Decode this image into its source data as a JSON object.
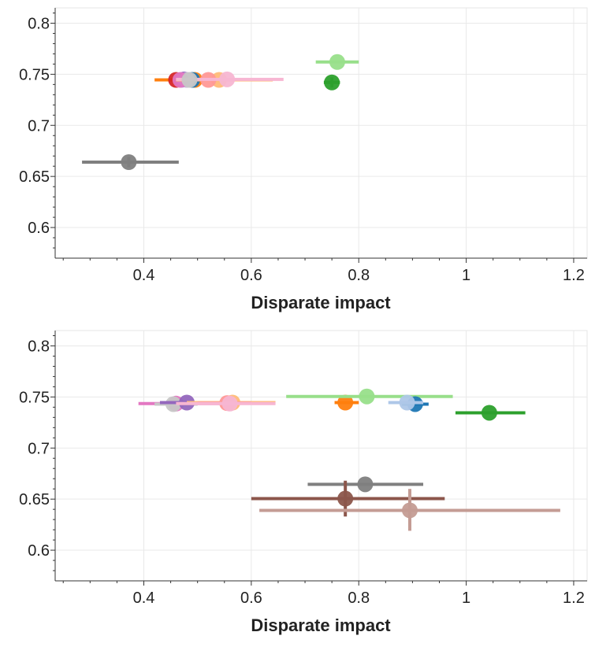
{
  "chart_data": [
    {
      "type": "scatter",
      "xlabel": "Disparate impact",
      "ylabel": "",
      "xlim": [
        0.235,
        1.225
      ],
      "ylim": [
        0.57,
        0.815
      ],
      "x_ticks": [
        0.4,
        0.6,
        0.8,
        1,
        1.2
      ],
      "x_tick_labels": [
        "0.4",
        "0.6",
        "0.8",
        "1",
        "1.2"
      ],
      "y_ticks": [
        0.6,
        0.65,
        0.7,
        0.75,
        0.8
      ],
      "y_tick_labels": [
        "0.6",
        "0.65",
        "0.7",
        "0.75",
        "0.8"
      ],
      "grid": true,
      "points": [
        {
          "x": 0.495,
          "y": 0.7445,
          "xerr": [
            0.42,
            0.56
          ],
          "yerr": null,
          "color": "#ff7f0e"
        },
        {
          "x": 0.49,
          "y": 0.7445,
          "xerr": null,
          "yerr": null,
          "color": "#1f77b4"
        },
        {
          "x": 0.47,
          "y": 0.7445,
          "xerr": null,
          "yerr": null,
          "color": "#aec7e8"
        },
        {
          "x": 0.46,
          "y": 0.7445,
          "xerr": null,
          "yerr": null,
          "color": "#d62728"
        },
        {
          "x": 0.475,
          "y": 0.745,
          "xerr": null,
          "yerr": null,
          "color": "#9467bd"
        },
        {
          "x": 0.48,
          "y": 0.7445,
          "xerr": null,
          "yerr": null,
          "color": "#c5b0d5"
        },
        {
          "x": 0.468,
          "y": 0.7445,
          "xerr": null,
          "yerr": null,
          "color": "#e377c2"
        },
        {
          "x": 0.54,
          "y": 0.7445,
          "xerr": [
            0.46,
            0.64
          ],
          "yerr": null,
          "color": "#ffbb78"
        },
        {
          "x": 0.52,
          "y": 0.7445,
          "xerr": null,
          "yerr": null,
          "color": "#ff9896"
        },
        {
          "x": 0.555,
          "y": 0.745,
          "xerr": [
            0.46,
            0.66
          ],
          "yerr": null,
          "color": "#f7b6d2"
        },
        {
          "x": 0.485,
          "y": 0.7445,
          "xerr": null,
          "yerr": null,
          "color": "#c7c7c7"
        },
        {
          "x": 0.76,
          "y": 0.762,
          "xerr": [
            0.72,
            0.8
          ],
          "yerr": null,
          "color": "#98df8a"
        },
        {
          "x": 0.75,
          "y": 0.742,
          "xerr": [
            0.735,
            0.765
          ],
          "yerr": [
            0.737,
            0.747
          ],
          "color": "#2ca02c"
        },
        {
          "x": 0.372,
          "y": 0.664,
          "xerr": [
            0.285,
            0.465
          ],
          "yerr": [
            0.659,
            0.669
          ],
          "color": "#7f7f7f"
        }
      ]
    },
    {
      "type": "scatter",
      "xlabel": "Disparate impact",
      "ylabel": "",
      "xlim": [
        0.235,
        1.225
      ],
      "ylim": [
        0.57,
        0.815
      ],
      "x_ticks": [
        0.4,
        0.6,
        0.8,
        1,
        1.2
      ],
      "x_tick_labels": [
        "0.4",
        "0.6",
        "0.8",
        "1",
        "1.2"
      ],
      "y_ticks": [
        0.6,
        0.65,
        0.7,
        0.75,
        0.8
      ],
      "y_tick_labels": [
        "0.6",
        "0.65",
        "0.7",
        "0.75",
        "0.8"
      ],
      "grid": true,
      "points": [
        {
          "x": 0.46,
          "y": 0.7435,
          "xerr": [
            0.39,
            0.55
          ],
          "yerr": null,
          "color": "#e377c2"
        },
        {
          "x": 0.455,
          "y": 0.743,
          "xerr": [
            0.42,
            0.5
          ],
          "yerr": null,
          "color": "#c7c7c7"
        },
        {
          "x": 0.48,
          "y": 0.7445,
          "xerr": [
            0.43,
            0.53
          ],
          "yerr": null,
          "color": "#9467bd"
        },
        {
          "x": 0.565,
          "y": 0.7445,
          "xerr": [
            0.48,
            0.645
          ],
          "yerr": null,
          "color": "#ffbb78"
        },
        {
          "x": 0.555,
          "y": 0.744,
          "xerr": [
            0.5,
            0.6
          ],
          "yerr": null,
          "color": "#ff9896"
        },
        {
          "x": 0.56,
          "y": 0.7435,
          "xerr": [
            0.46,
            0.645
          ],
          "yerr": null,
          "color": "#f7b6d2"
        },
        {
          "x": 0.775,
          "y": 0.7445,
          "xerr": [
            0.755,
            0.8
          ],
          "yerr": null,
          "color": "#ff7f0e"
        },
        {
          "x": 0.815,
          "y": 0.7505,
          "xerr": [
            0.665,
            0.975
          ],
          "yerr": null,
          "color": "#98df8a"
        },
        {
          "x": 0.905,
          "y": 0.743,
          "xerr": [
            0.88,
            0.93
          ],
          "yerr": null,
          "color": "#1f77b4"
        },
        {
          "x": 0.89,
          "y": 0.7445,
          "xerr": [
            0.855,
            0.92
          ],
          "yerr": null,
          "color": "#aec7e8"
        },
        {
          "x": 1.043,
          "y": 0.7345,
          "xerr": [
            0.98,
            1.11
          ],
          "yerr": null,
          "color": "#2ca02c"
        },
        {
          "x": 0.812,
          "y": 0.6645,
          "xerr": [
            0.705,
            0.92
          ],
          "yerr": null,
          "color": "#7f7f7f"
        },
        {
          "x": 0.775,
          "y": 0.6505,
          "xerr": [
            0.6,
            0.96
          ],
          "yerr": [
            0.633,
            0.668
          ],
          "color": "#8c564b"
        },
        {
          "x": 0.895,
          "y": 0.639,
          "xerr": [
            0.615,
            1.175
          ],
          "yerr": [
            0.619,
            0.66
          ],
          "color": "#c49c94"
        }
      ]
    }
  ]
}
